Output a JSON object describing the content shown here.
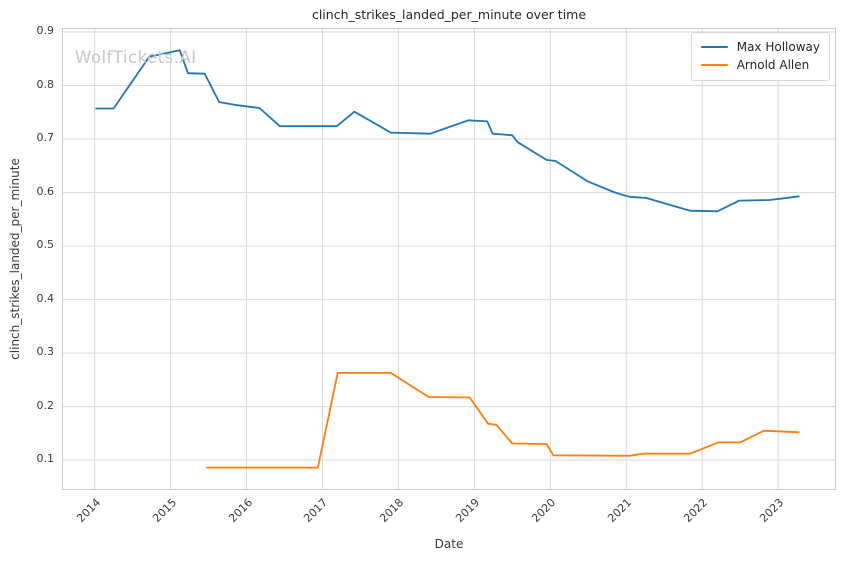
{
  "watermark": "WolfTickets.AI",
  "chart_data": {
    "type": "line",
    "title": "clinch_strikes_landed_per_minute over time",
    "xlabel": "Date",
    "ylabel": "clinch_strikes_landed_per_minute",
    "xlim": [
      2013.584,
      2023.748
    ],
    "ylim": [
      0.046,
      0.9056
    ],
    "x_ticks": [
      2014,
      2015,
      2016,
      2017,
      2018,
      2019,
      2020,
      2021,
      2022,
      2023
    ],
    "y_ticks": [
      0.1,
      0.2,
      0.3,
      0.4,
      0.5,
      0.6,
      0.7,
      0.8,
      0.9
    ],
    "grid": true,
    "grid_color": "#d9d9d9",
    "legend_position": "upper right",
    "series": [
      {
        "name": "Max Holloway",
        "color": "#1f77b4",
        "x": [
          2014.01,
          2014.25,
          2014.72,
          2015.12,
          2015.23,
          2015.45,
          2015.64,
          2015.84,
          2016.17,
          2016.44,
          2017.19,
          2017.42,
          2017.9,
          2018.42,
          2018.92,
          2019.17,
          2019.24,
          2019.5,
          2019.57,
          2019.95,
          2020.07,
          2020.49,
          2020.85,
          2021.04,
          2021.26,
          2021.84,
          2022.2,
          2022.49,
          2022.89,
          2023.28
        ],
        "y": [
          0.757,
          0.757,
          0.854,
          0.866,
          0.823,
          0.822,
          0.769,
          0.764,
          0.758,
          0.724,
          0.724,
          0.751,
          0.712,
          0.71,
          0.735,
          0.733,
          0.71,
          0.707,
          0.694,
          0.661,
          0.659,
          0.621,
          0.6,
          0.592,
          0.59,
          0.566,
          0.565,
          0.585,
          0.586,
          0.593
        ]
      },
      {
        "name": "Arnold Allen",
        "color": "#ff7f0e",
        "x": [
          2015.47,
          2016.94,
          2017.2,
          2017.9,
          2018.4,
          2018.94,
          2019.18,
          2019.29,
          2019.5,
          2019.95,
          2020.04,
          2021.04,
          2021.23,
          2021.84,
          2022.21,
          2022.5,
          2022.81,
          2023.28
        ],
        "y": [
          0.086,
          0.086,
          0.263,
          0.263,
          0.218,
          0.217,
          0.168,
          0.166,
          0.131,
          0.13,
          0.109,
          0.108,
          0.112,
          0.112,
          0.133,
          0.133,
          0.155,
          0.152
        ]
      }
    ]
  }
}
